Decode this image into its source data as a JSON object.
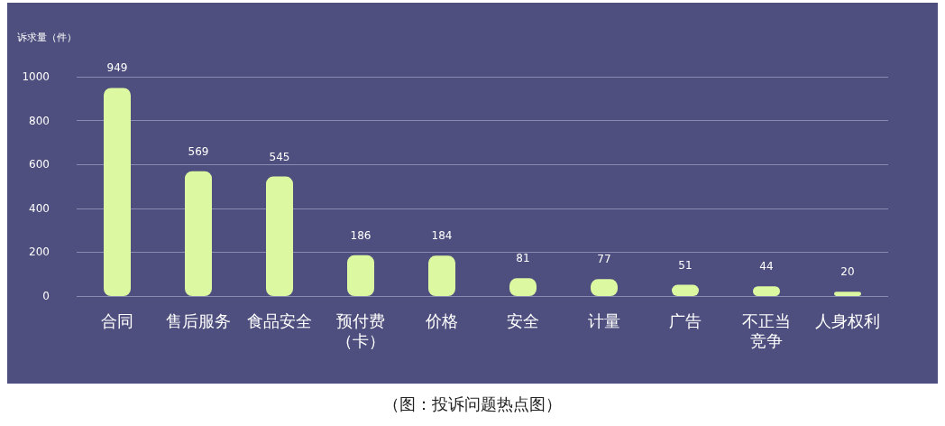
{
  "chart_data": {
    "type": "bar",
    "ylabel": "诉求量（件）",
    "categories": [
      "合同",
      "售后服务",
      "食品安全",
      "预付费（卡）",
      "价格",
      "安全",
      "计量",
      "广告",
      "不正当竞争",
      "人身权利"
    ],
    "values": [
      949,
      569,
      545,
      186,
      184,
      81,
      77,
      51,
      44,
      20
    ],
    "color": "#dcf8a0",
    "ylim": [
      0,
      1000
    ],
    "yticks": [
      0,
      200,
      400,
      600,
      800,
      1000
    ],
    "grid": "y",
    "data_labels": true,
    "annotations": [
      "（图：投诉问题热点图）"
    ]
  }
}
